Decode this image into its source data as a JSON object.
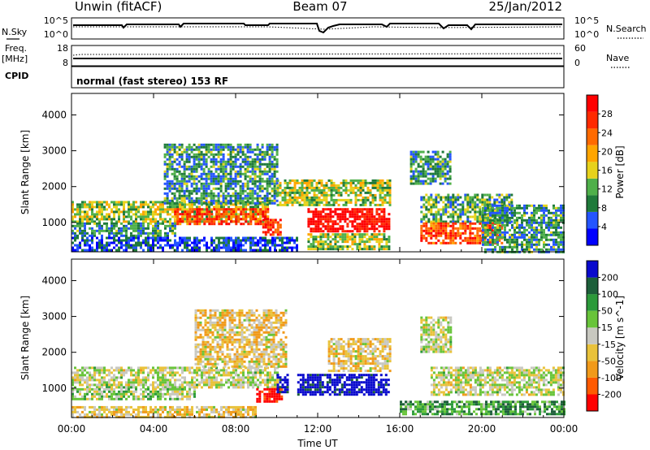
{
  "header": {
    "station": "Unwin (fitACF)",
    "beam": "Beam 07",
    "date": "25/Jan/2012"
  },
  "status_panels": {
    "nsky_label": "N.Sky",
    "nsearch_label": "N.Search",
    "noise_ticks": [
      "10^5",
      "10^0"
    ],
    "freq_label_line1": "Freq.",
    "freq_label_line2": "[MHz]",
    "freq_ticks": [
      "18",
      "8"
    ],
    "nave_label": "Nave",
    "nave_ticks": [
      "60",
      "0"
    ],
    "cpid_label": "CPID",
    "cpid_text": "normal (fast stereo) 153 RF"
  },
  "colors": {
    "power": [
      "#0000ff",
      "#2455ff",
      "#1f7a3a",
      "#4fb04a",
      "#e7d21c",
      "#ffa500",
      "#ff6a00",
      "#ff2a00",
      "#ff0000"
    ],
    "velocity": [
      "#0a0acd",
      "#1d5f3a",
      "#2c9a3a",
      "#68c43a",
      "#c8c8c0",
      "#e9c23a",
      "#f19a1a",
      "#ff5a00",
      "#ff0000"
    ]
  },
  "chart_data": [
    {
      "type": "heatmap",
      "title": "",
      "xlabel": "Time UT",
      "ylabel": "Slant Range [km]",
      "x_ticks": [
        "00:00",
        "04:00",
        "08:00",
        "12:00",
        "16:00",
        "20:00",
        "00:00"
      ],
      "y_ticks": [
        1000,
        2000,
        3000,
        4000
      ],
      "xlim_hours": [
        0,
        24
      ],
      "ylim_km": [
        180,
        4600
      ],
      "colorbar_label": "Power [dB]",
      "colorbar_ticks": [
        4,
        8,
        12,
        16,
        20,
        24,
        28
      ],
      "colorbar_range": [
        0,
        32
      ],
      "regions": [
        {
          "t0": 0.0,
          "t1": 9.6,
          "r0": 1050,
          "r1": 1600,
          "level": 0.45
        },
        {
          "t0": 5.0,
          "t1": 9.6,
          "r0": 950,
          "r1": 1400,
          "level": 0.8
        },
        {
          "t0": 0.0,
          "t1": 5.0,
          "r0": 650,
          "r1": 1000,
          "level": 0.3
        },
        {
          "t0": 0.0,
          "t1": 11.0,
          "r0": 200,
          "r1": 600,
          "level": 0.15
        },
        {
          "t0": 4.5,
          "t1": 10.0,
          "r0": 1500,
          "r1": 3200,
          "level": 0.3
        },
        {
          "t0": 9.3,
          "t1": 10.2,
          "r0": 650,
          "r1": 1100,
          "level": 0.85
        },
        {
          "t0": 10.0,
          "t1": 15.5,
          "r0": 1500,
          "r1": 2200,
          "level": 0.45
        },
        {
          "t0": 11.5,
          "t1": 15.5,
          "r0": 750,
          "r1": 1400,
          "level": 0.95
        },
        {
          "t0": 11.5,
          "t1": 15.5,
          "r0": 250,
          "r1": 700,
          "level": 0.45
        },
        {
          "t0": 16.5,
          "t1": 18.5,
          "r0": 2100,
          "r1": 3000,
          "level": 0.3
        },
        {
          "t0": 17.0,
          "t1": 21.5,
          "r0": 1000,
          "r1": 1800,
          "level": 0.35
        },
        {
          "t0": 17.0,
          "t1": 21.0,
          "r0": 400,
          "r1": 1000,
          "level": 0.8
        },
        {
          "t0": 20.0,
          "t1": 24.0,
          "r0": 200,
          "r1": 1500,
          "level": 0.3
        }
      ]
    },
    {
      "type": "heatmap",
      "title": "",
      "xlabel": "Time UT",
      "ylabel": "Slant Range [km]",
      "x_ticks": [
        "00:00",
        "04:00",
        "08:00",
        "12:00",
        "16:00",
        "20:00",
        "00:00"
      ],
      "y_ticks": [
        1000,
        2000,
        3000,
        4000
      ],
      "xlim_hours": [
        0,
        24
      ],
      "ylim_km": [
        180,
        4600
      ],
      "colorbar_label": "Velocity [m s^-1]",
      "colorbar_ticks": [
        200,
        100,
        50,
        15,
        -15,
        -50,
        -100,
        -200
      ],
      "regions": [
        {
          "t0": 0.0,
          "t1": 10.0,
          "r0": 1050,
          "r1": 1600,
          "level": 0.5
        },
        {
          "t0": 0.0,
          "t1": 6.0,
          "r0": 700,
          "r1": 1000,
          "level": 0.45
        },
        {
          "t0": 0.0,
          "t1": 9.0,
          "r0": 200,
          "r1": 500,
          "level": 0.6
        },
        {
          "t0": 6.0,
          "t1": 10.5,
          "r0": 1600,
          "r1": 3200,
          "level": 0.6
        },
        {
          "t0": 9.0,
          "t1": 10.2,
          "r0": 600,
          "r1": 1000,
          "level": 1.0
        },
        {
          "t0": 10.0,
          "t1": 10.5,
          "r0": 900,
          "r1": 1400,
          "level": 0.0
        },
        {
          "t0": 11.0,
          "t1": 15.4,
          "r0": 800,
          "r1": 1400,
          "level": 0.0
        },
        {
          "t0": 12.5,
          "t1": 15.5,
          "r0": 1500,
          "r1": 2400,
          "level": 0.6
        },
        {
          "t0": 17.5,
          "t1": 24.0,
          "r0": 800,
          "r1": 1600,
          "level": 0.5
        },
        {
          "t0": 16.0,
          "t1": 24.0,
          "r0": 250,
          "r1": 650,
          "level": 0.3
        },
        {
          "t0": 17.0,
          "t1": 18.5,
          "r0": 2000,
          "r1": 3000,
          "level": 0.5
        }
      ]
    }
  ]
}
